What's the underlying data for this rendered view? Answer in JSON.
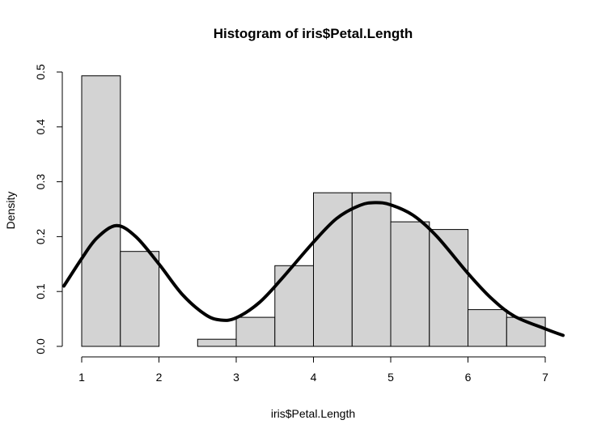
{
  "chart_data": {
    "type": "bar",
    "title": "Histogram of iris$Petal.Length",
    "xlabel": "iris$Petal.Length",
    "ylabel": "Density",
    "xlim": [
      1,
      7
    ],
    "ylim": [
      0,
      0.5
    ],
    "x_ticks": [
      "1",
      "2",
      "3",
      "4",
      "5",
      "6",
      "7"
    ],
    "y_ticks": [
      "0.0",
      "0.1",
      "0.2",
      "0.3",
      "0.4",
      "0.5"
    ],
    "bins": [
      {
        "from": 1.0,
        "to": 1.5,
        "density": 0.493
      },
      {
        "from": 1.5,
        "to": 2.0,
        "density": 0.173
      },
      {
        "from": 2.0,
        "to": 2.5,
        "density": 0.0
      },
      {
        "from": 2.5,
        "to": 3.0,
        "density": 0.013
      },
      {
        "from": 3.0,
        "to": 3.5,
        "density": 0.053
      },
      {
        "from": 3.5,
        "to": 4.0,
        "density": 0.147
      },
      {
        "from": 4.0,
        "to": 4.5,
        "density": 0.28
      },
      {
        "from": 4.5,
        "to": 5.0,
        "density": 0.28
      },
      {
        "from": 5.0,
        "to": 5.5,
        "density": 0.227
      },
      {
        "from": 5.5,
        "to": 6.0,
        "density": 0.213
      },
      {
        "from": 6.0,
        "to": 6.5,
        "density": 0.067
      },
      {
        "from": 6.5,
        "to": 7.0,
        "density": 0.053
      }
    ],
    "density_curve": {
      "x": [
        0.77,
        1.0,
        1.2,
        1.45,
        1.7,
        2.0,
        2.3,
        2.6,
        2.8,
        3.0,
        3.3,
        3.6,
        4.0,
        4.3,
        4.6,
        4.8,
        5.0,
        5.3,
        5.6,
        6.0,
        6.3,
        6.6,
        7.0,
        7.23
      ],
      "y": [
        0.11,
        0.16,
        0.198,
        0.22,
        0.2,
        0.15,
        0.095,
        0.058,
        0.048,
        0.052,
        0.08,
        0.125,
        0.19,
        0.233,
        0.257,
        0.262,
        0.258,
        0.238,
        0.2,
        0.133,
        0.088,
        0.055,
        0.032,
        0.02
      ]
    },
    "grid": false,
    "legend": "none"
  }
}
